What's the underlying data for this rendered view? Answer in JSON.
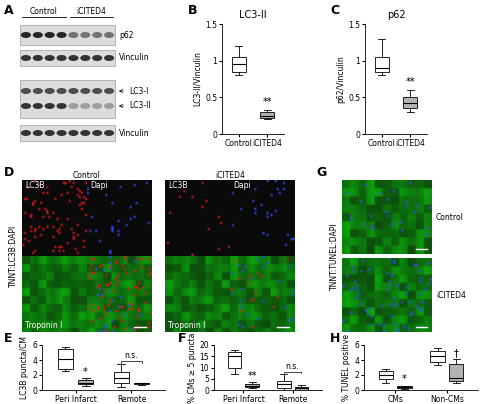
{
  "panels": [
    "A",
    "B",
    "C",
    "D",
    "E",
    "F",
    "G",
    "H"
  ],
  "blot": {
    "groups": [
      "Control",
      "iCITED4"
    ],
    "labels": [
      "p62",
      "Vinculin",
      "LC3-I",
      "LC3-II",
      "Vinculin"
    ]
  },
  "micrographs": {
    "D": {
      "groups": [
        "Control",
        "iCITED4"
      ],
      "channels": [
        "LC3B",
        "Dapi",
        "Troponin I"
      ],
      "stain": "TNNT:LC3B:DAPI"
    },
    "G": {
      "groups": [
        "Control",
        "iCITED4"
      ],
      "stain": "TNNT:TUNEL:DAPI"
    }
  },
  "chart_data": [
    {
      "panel": "B",
      "type": "box",
      "title": "LC3-II",
      "y_label": "LC3-II/Vinculin",
      "categories": [
        "Control",
        "iCITED4"
      ],
      "colors": [
        "#ffffff",
        "#b3b3b3"
      ],
      "boxes": [
        {
          "whislo": 0.8,
          "q1": 0.85,
          "med": 0.95,
          "q3": 1.05,
          "whishi": 1.2
        },
        {
          "whislo": 0.2,
          "q1": 0.22,
          "med": 0.25,
          "q3": 0.3,
          "whishi": 0.33
        }
      ],
      "ylim": [
        0,
        1.5
      ],
      "yticks": [
        0,
        0.5,
        1,
        1.5
      ],
      "annotations": [
        {
          "text": "**",
          "category": 1
        }
      ]
    },
    {
      "panel": "C",
      "type": "box",
      "title": "p62",
      "y_label": "p62/Vinculin",
      "categories": [
        "Control",
        "iCITED4"
      ],
      "colors": [
        "#ffffff",
        "#b3b3b3"
      ],
      "boxes": [
        {
          "whislo": 0.8,
          "q1": 0.85,
          "med": 0.9,
          "q3": 1.05,
          "whishi": 1.3
        },
        {
          "whislo": 0.3,
          "q1": 0.35,
          "med": 0.42,
          "q3": 0.5,
          "whishi": 0.6
        }
      ],
      "ylim": [
        0,
        1.5
      ],
      "yticks": [
        0,
        0.5,
        1,
        1.5
      ],
      "annotations": [
        {
          "text": "**",
          "category": 1
        }
      ]
    },
    {
      "panel": "E",
      "type": "box",
      "y_label": "LC3B puncta/CM",
      "categories": [
        "Peri Infarct",
        "Remote"
      ],
      "series": [
        {
          "color": "#ffffff",
          "boxes": [
            {
              "whislo": 2.5,
              "q1": 2.8,
              "med": 4.1,
              "q3": 5.5,
              "whishi": 5.8
            },
            {
              "whislo": 0.4,
              "q1": 0.9,
              "med": 1.6,
              "q3": 2.4,
              "whishi": 3.5
            }
          ]
        },
        {
          "color": "#b3b3b3",
          "boxes": [
            {
              "whislo": 0.5,
              "q1": 0.8,
              "med": 1.0,
              "q3": 1.4,
              "whishi": 1.6
            },
            {
              "whislo": 0.7,
              "q1": 0.8,
              "med": 0.9,
              "q3": 1.0,
              "whishi": 1.0
            }
          ]
        }
      ],
      "ylim": [
        0,
        6
      ],
      "yticks": [
        0,
        2,
        4,
        6
      ],
      "annotations": [
        {
          "text": "*",
          "category": 0,
          "series": 1
        },
        {
          "text": "n.s.",
          "category": 1,
          "bracket": true
        }
      ]
    },
    {
      "panel": "F",
      "type": "box",
      "y_label": "% CMs ≥ 5 puncta",
      "categories": [
        "Peri Infarct",
        "Remote"
      ],
      "series": [
        {
          "color": "#ffffff",
          "boxes": [
            {
              "whislo": 7,
              "q1": 10,
              "med": 15,
              "q3": 17,
              "whishi": 18
            },
            {
              "whislo": 0,
              "q1": 0.8,
              "med": 2.5,
              "q3": 4,
              "whishi": 7
            }
          ]
        },
        {
          "color": "#b3b3b3",
          "boxes": [
            {
              "whislo": 0.8,
              "q1": 1.2,
              "med": 2,
              "q3": 2.5,
              "whishi": 3.5
            },
            {
              "whislo": 0,
              "q1": 0.2,
              "med": 0.8,
              "q3": 1.5,
              "whishi": 2.2
            }
          ]
        }
      ],
      "ylim": [
        0,
        20
      ],
      "yticks": [
        0,
        5,
        10,
        15,
        20
      ],
      "annotations": [
        {
          "text": "**",
          "category": 0,
          "series": 1
        },
        {
          "text": "n.s.",
          "category": 1,
          "bracket": true
        }
      ]
    },
    {
      "panel": "H",
      "type": "box",
      "y_label": "% TUNEL positive",
      "categories": [
        "CMs",
        "Non-CMs"
      ],
      "series": [
        {
          "color": "#ffffff",
          "boxes": [
            {
              "whislo": 0.9,
              "q1": 1.5,
              "med": 2.0,
              "q3": 2.5,
              "whishi": 2.8
            },
            {
              "whislo": 3.3,
              "q1": 3.8,
              "med": 4.5,
              "q3": 5.2,
              "whishi": 5.6
            }
          ]
        },
        {
          "color": "#b3b3b3",
          "boxes": [
            {
              "whislo": 0.2,
              "q1": 0.3,
              "med": 0.4,
              "q3": 0.5,
              "whishi": 0.6
            },
            {
              "whislo": 1.0,
              "q1": 1.2,
              "med": 1.6,
              "q3": 3.5,
              "whishi": 4.1
            }
          ]
        }
      ],
      "ylim": [
        0,
        6
      ],
      "yticks": [
        0,
        2,
        4,
        6
      ],
      "annotations": [
        {
          "text": "*",
          "category": 0,
          "series": 1
        },
        {
          "text": "†",
          "category": 1,
          "series": 1
        }
      ]
    }
  ]
}
